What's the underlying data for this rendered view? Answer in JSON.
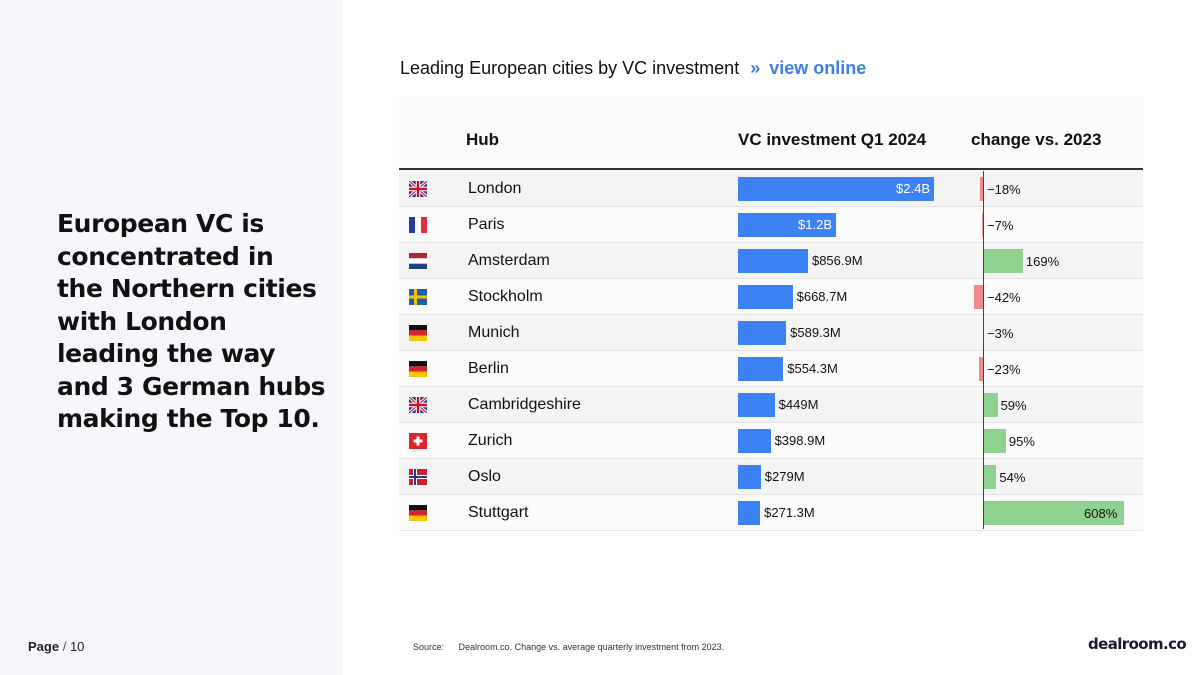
{
  "headline": "European VC is concentrated in the Northern cities with London leading the way and 3 German hubs making the Top 10.",
  "page": {
    "label": "Page",
    "separator": "/",
    "number": "10"
  },
  "chart_title": {
    "text": "Leading European cities by VC investment",
    "chevron": "»",
    "link": "view online"
  },
  "source": {
    "label": "Source:",
    "text": "Dealroom.co. Change vs. average quarterly investment from 2023."
  },
  "logo": "dealroom.co",
  "colors": {
    "investment_bar": "#3d82f5",
    "negative_change": "#ee8a8a",
    "positive_change": "#8fd18f",
    "link": "#3d7ee6"
  },
  "chart_data": {
    "type": "table",
    "columns": [
      "Hub",
      "VC investment Q1 2024",
      "change vs. 2023"
    ],
    "rows": [
      {
        "flag": "uk-flag-icon",
        "hub": "London",
        "investment": 2400,
        "investment_label": "$2.4B",
        "change": -18,
        "change_label": "−18%"
      },
      {
        "flag": "france-flag-icon",
        "hub": "Paris",
        "investment": 1200,
        "investment_label": "$1.2B",
        "change": -7,
        "change_label": "−7%"
      },
      {
        "flag": "netherlands-flag-icon",
        "hub": "Amsterdam",
        "investment": 856.9,
        "investment_label": "$856.9M",
        "change": 169,
        "change_label": "169%"
      },
      {
        "flag": "sweden-flag-icon",
        "hub": "Stockholm",
        "investment": 668.7,
        "investment_label": "$668.7M",
        "change": -42,
        "change_label": "−42%"
      },
      {
        "flag": "germany-flag-icon",
        "hub": "Munich",
        "investment": 589.3,
        "investment_label": "$589.3M",
        "change": -3,
        "change_label": "−3%"
      },
      {
        "flag": "germany-flag-icon",
        "hub": "Berlin",
        "investment": 554.3,
        "investment_label": "$554.3M",
        "change": -23,
        "change_label": "−23%"
      },
      {
        "flag": "uk-flag-icon",
        "hub": "Cambridgeshire",
        "investment": 449,
        "investment_label": "$449M",
        "change": 59,
        "change_label": "59%"
      },
      {
        "flag": "switzerland-flag-icon",
        "hub": "Zurich",
        "investment": 398.9,
        "investment_label": "$398.9M",
        "change": 95,
        "change_label": "95%"
      },
      {
        "flag": "norway-flag-icon",
        "hub": "Oslo",
        "investment": 279,
        "investment_label": "$279M",
        "change": 54,
        "change_label": "54%"
      },
      {
        "flag": "germany-flag-icon",
        "hub": "Stuttgart",
        "investment": 271.3,
        "investment_label": "$271.3M",
        "change": 608,
        "change_label": "608%"
      }
    ]
  }
}
